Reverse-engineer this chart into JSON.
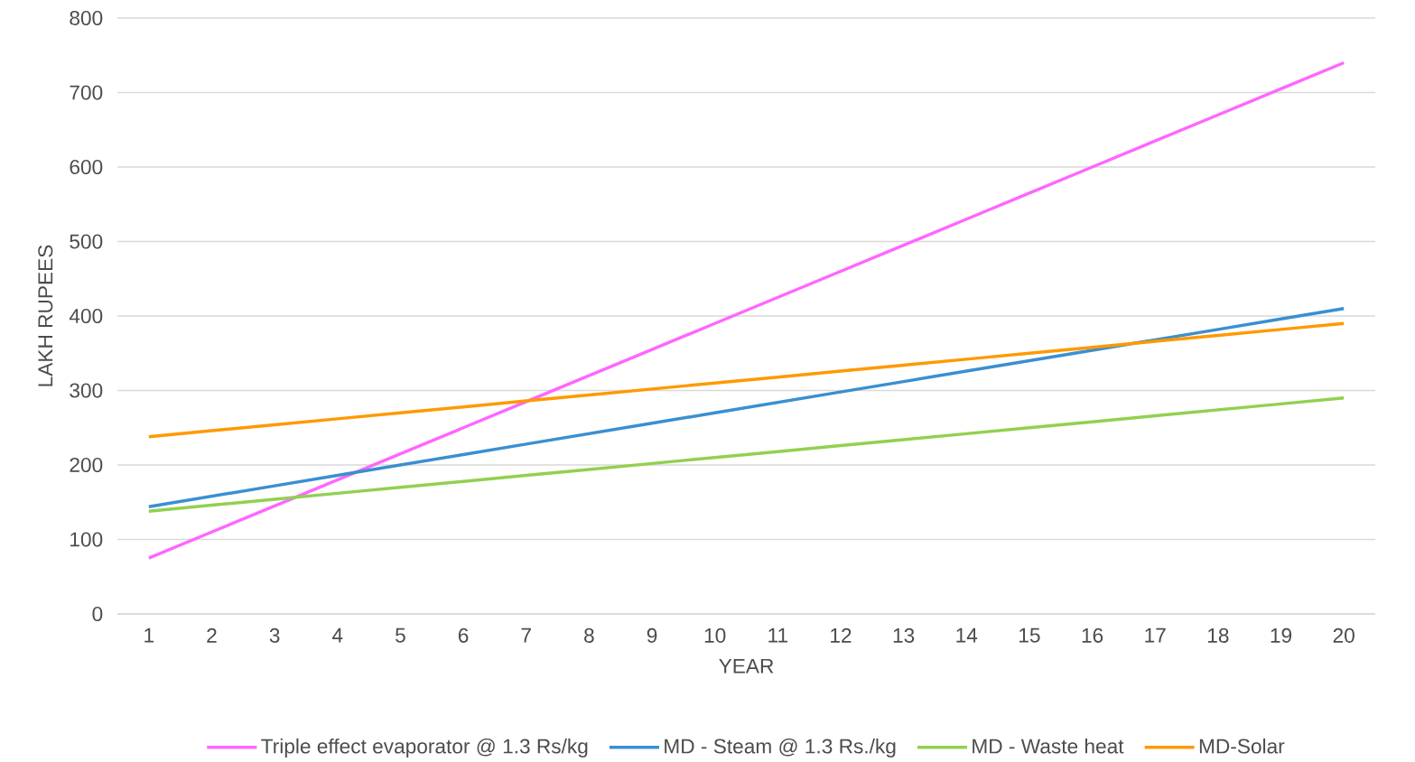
{
  "chart_data": {
    "type": "line",
    "xlabel": "YEAR",
    "ylabel": "LAKH RUPEES",
    "categories": [
      "1",
      "2",
      "3",
      "4",
      "5",
      "6",
      "7",
      "8",
      "9",
      "10",
      "11",
      "12",
      "13",
      "14",
      "15",
      "16",
      "17",
      "18",
      "19",
      "20"
    ],
    "series": [
      {
        "name": "Triple effect evaporator @ 1.3 Rs/kg",
        "color": "#ff66ff",
        "values": [
          75,
          110,
          145,
          180,
          215,
          250,
          285,
          320,
          355,
          390,
          425,
          460,
          495,
          530,
          565,
          600,
          635,
          670,
          705,
          740
        ]
      },
      {
        "name": "MD - Steam @ 1.3 Rs./kg",
        "color": "#3a8fd0",
        "values": [
          144,
          158,
          172,
          186,
          200,
          214,
          228,
          242,
          256,
          270,
          284,
          298,
          312,
          326,
          340,
          354,
          368,
          382,
          396,
          410
        ]
      },
      {
        "name": "MD - Waste heat",
        "color": "#92d050",
        "values": [
          138,
          146,
          154,
          162,
          170,
          178,
          186,
          194,
          202,
          210,
          218,
          226,
          234,
          242,
          250,
          258,
          266,
          274,
          282,
          290
        ]
      },
      {
        "name": "MD-Solar",
        "color": "#ff9900",
        "values": [
          238,
          246,
          254,
          262,
          270,
          278,
          286,
          294,
          302,
          310,
          318,
          326,
          334,
          342,
          350,
          358,
          366,
          374,
          382,
          390
        ]
      }
    ],
    "ylim": [
      0,
      800
    ],
    "yticks": [
      0,
      100,
      200,
      300,
      400,
      500,
      600,
      700,
      800
    ],
    "grid": "y",
    "legend": "bottom",
    "marker": "none",
    "line_style": "solid"
  }
}
